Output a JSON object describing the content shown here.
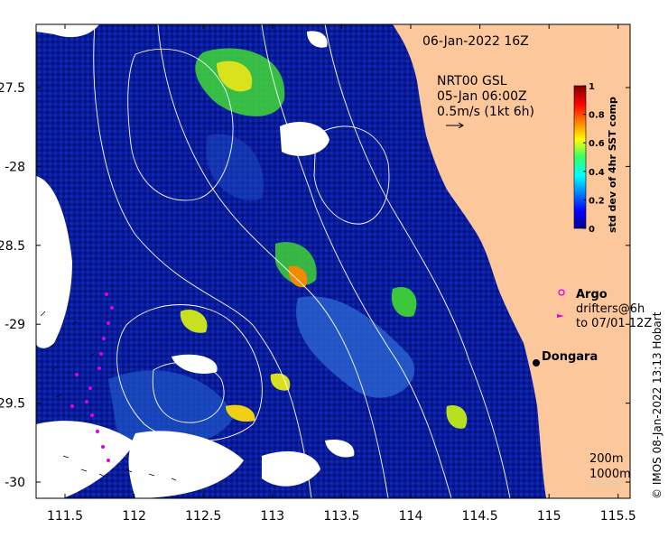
{
  "map": {
    "timestamp": "06-Jan-2022 16Z",
    "product_line1": "NRT00 GSL",
    "product_line2": "05-Jan 06:00Z",
    "vector_scale": "0.5m/s (1kt 6h)",
    "legend_argo": "Argo",
    "legend_drifters_line1": "drifters@6h",
    "legend_drifters_line2": "to 07/01 12Z",
    "place_label": "Dongara",
    "contour_label_1": "200m",
    "contour_label_2": "1000m",
    "credit": "© IMOS 08-Jan-2022 13:13 Hobart",
    "colorbar_title": "std dev of 4hr SST comp",
    "colors": {
      "land": "#fcc79a",
      "ocean_low": "#08108c",
      "ocean_mid": "#1f7fd6",
      "ocean_high": "#d6d600",
      "argo": "#e000e0",
      "contour": "#ffffff"
    }
  },
  "axes": {
    "x_ticks": [
      "111.5",
      "112",
      "112.5",
      "113",
      "113.5",
      "114",
      "114.5",
      "115",
      "115.5"
    ],
    "y_ticks": [
      "-27.5",
      "-28",
      "-28.5",
      "-29",
      "-29.5",
      "-30"
    ]
  },
  "colorbar": {
    "ticks": [
      "0",
      "0.2",
      "0.4",
      "0.6",
      "0.8",
      "1"
    ],
    "range": [
      0,
      1
    ],
    "colormap": "jet"
  }
}
